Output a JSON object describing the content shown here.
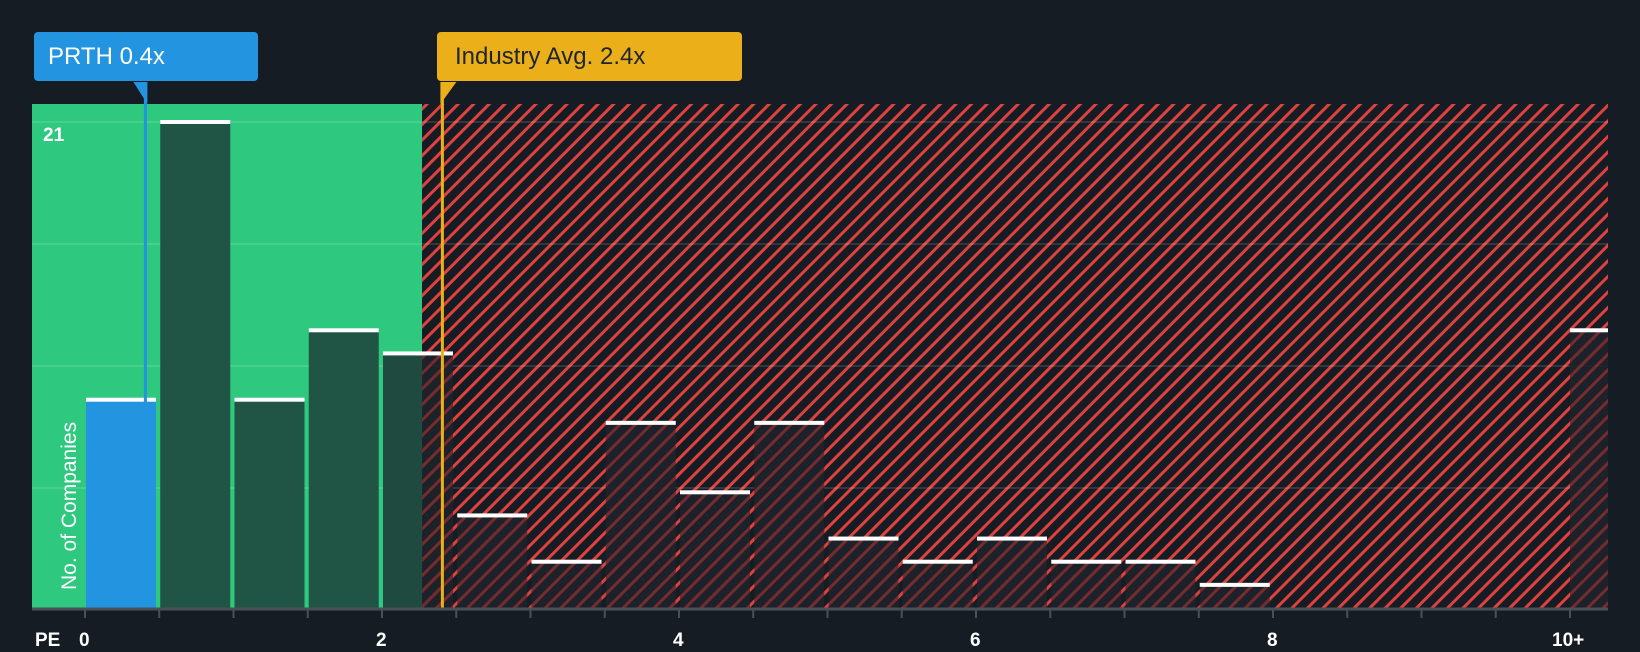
{
  "callouts": {
    "company": "PRTH 0.4x",
    "industry": "Industry Avg. 2.4x"
  },
  "axis": {
    "x_prefix": "PE",
    "y_label": "No. of Companies",
    "y_top_tick": "21",
    "x_ticks": [
      "0",
      "2",
      "4",
      "6",
      "8",
      "10+"
    ]
  },
  "colors": {
    "background": "#161c24",
    "fair_zone": "#2ec97f",
    "over_zone_stripe": "#e0413f",
    "company_bar": "#2394df",
    "company_line": "#2394df",
    "industry_line": "#ebb019",
    "bar_in_green": "#1f4a3f",
    "bar_in_red": "#1e2129",
    "bar_cap": "#ffffff"
  },
  "chart_data": {
    "type": "bar",
    "title": "",
    "xlabel": "PE",
    "ylabel": "No. of Companies",
    "ylim": [
      0,
      21
    ],
    "categories": [
      "0-0.5",
      "0.5-1",
      "1-1.5",
      "1.5-2",
      "2-2.5",
      "2.5-3",
      "3-3.5",
      "3.5-4",
      "4-4.5",
      "4.5-5",
      "5-5.5",
      "5.5-6",
      "6-6.5",
      "6.5-7",
      "7-7.5",
      "7.5-8",
      "8-8.5",
      "8.5-9",
      "9-9.5",
      "9.5-10",
      "10+"
    ],
    "values": [
      9,
      21,
      9,
      12,
      11,
      4,
      2,
      8,
      5,
      8,
      3,
      2,
      3,
      2,
      2,
      1,
      0,
      0,
      0,
      0,
      12
    ],
    "x_tick_labels": [
      "0",
      "2",
      "4",
      "6",
      "8",
      "10+"
    ],
    "highlight": {
      "label": "PRTH",
      "value": 0.4,
      "bin": "0-0.5"
    },
    "reference_line": {
      "label": "Industry Avg.",
      "value": 2.4
    },
    "fair_zone_max": 2.27,
    "grid": true,
    "legend": null
  }
}
